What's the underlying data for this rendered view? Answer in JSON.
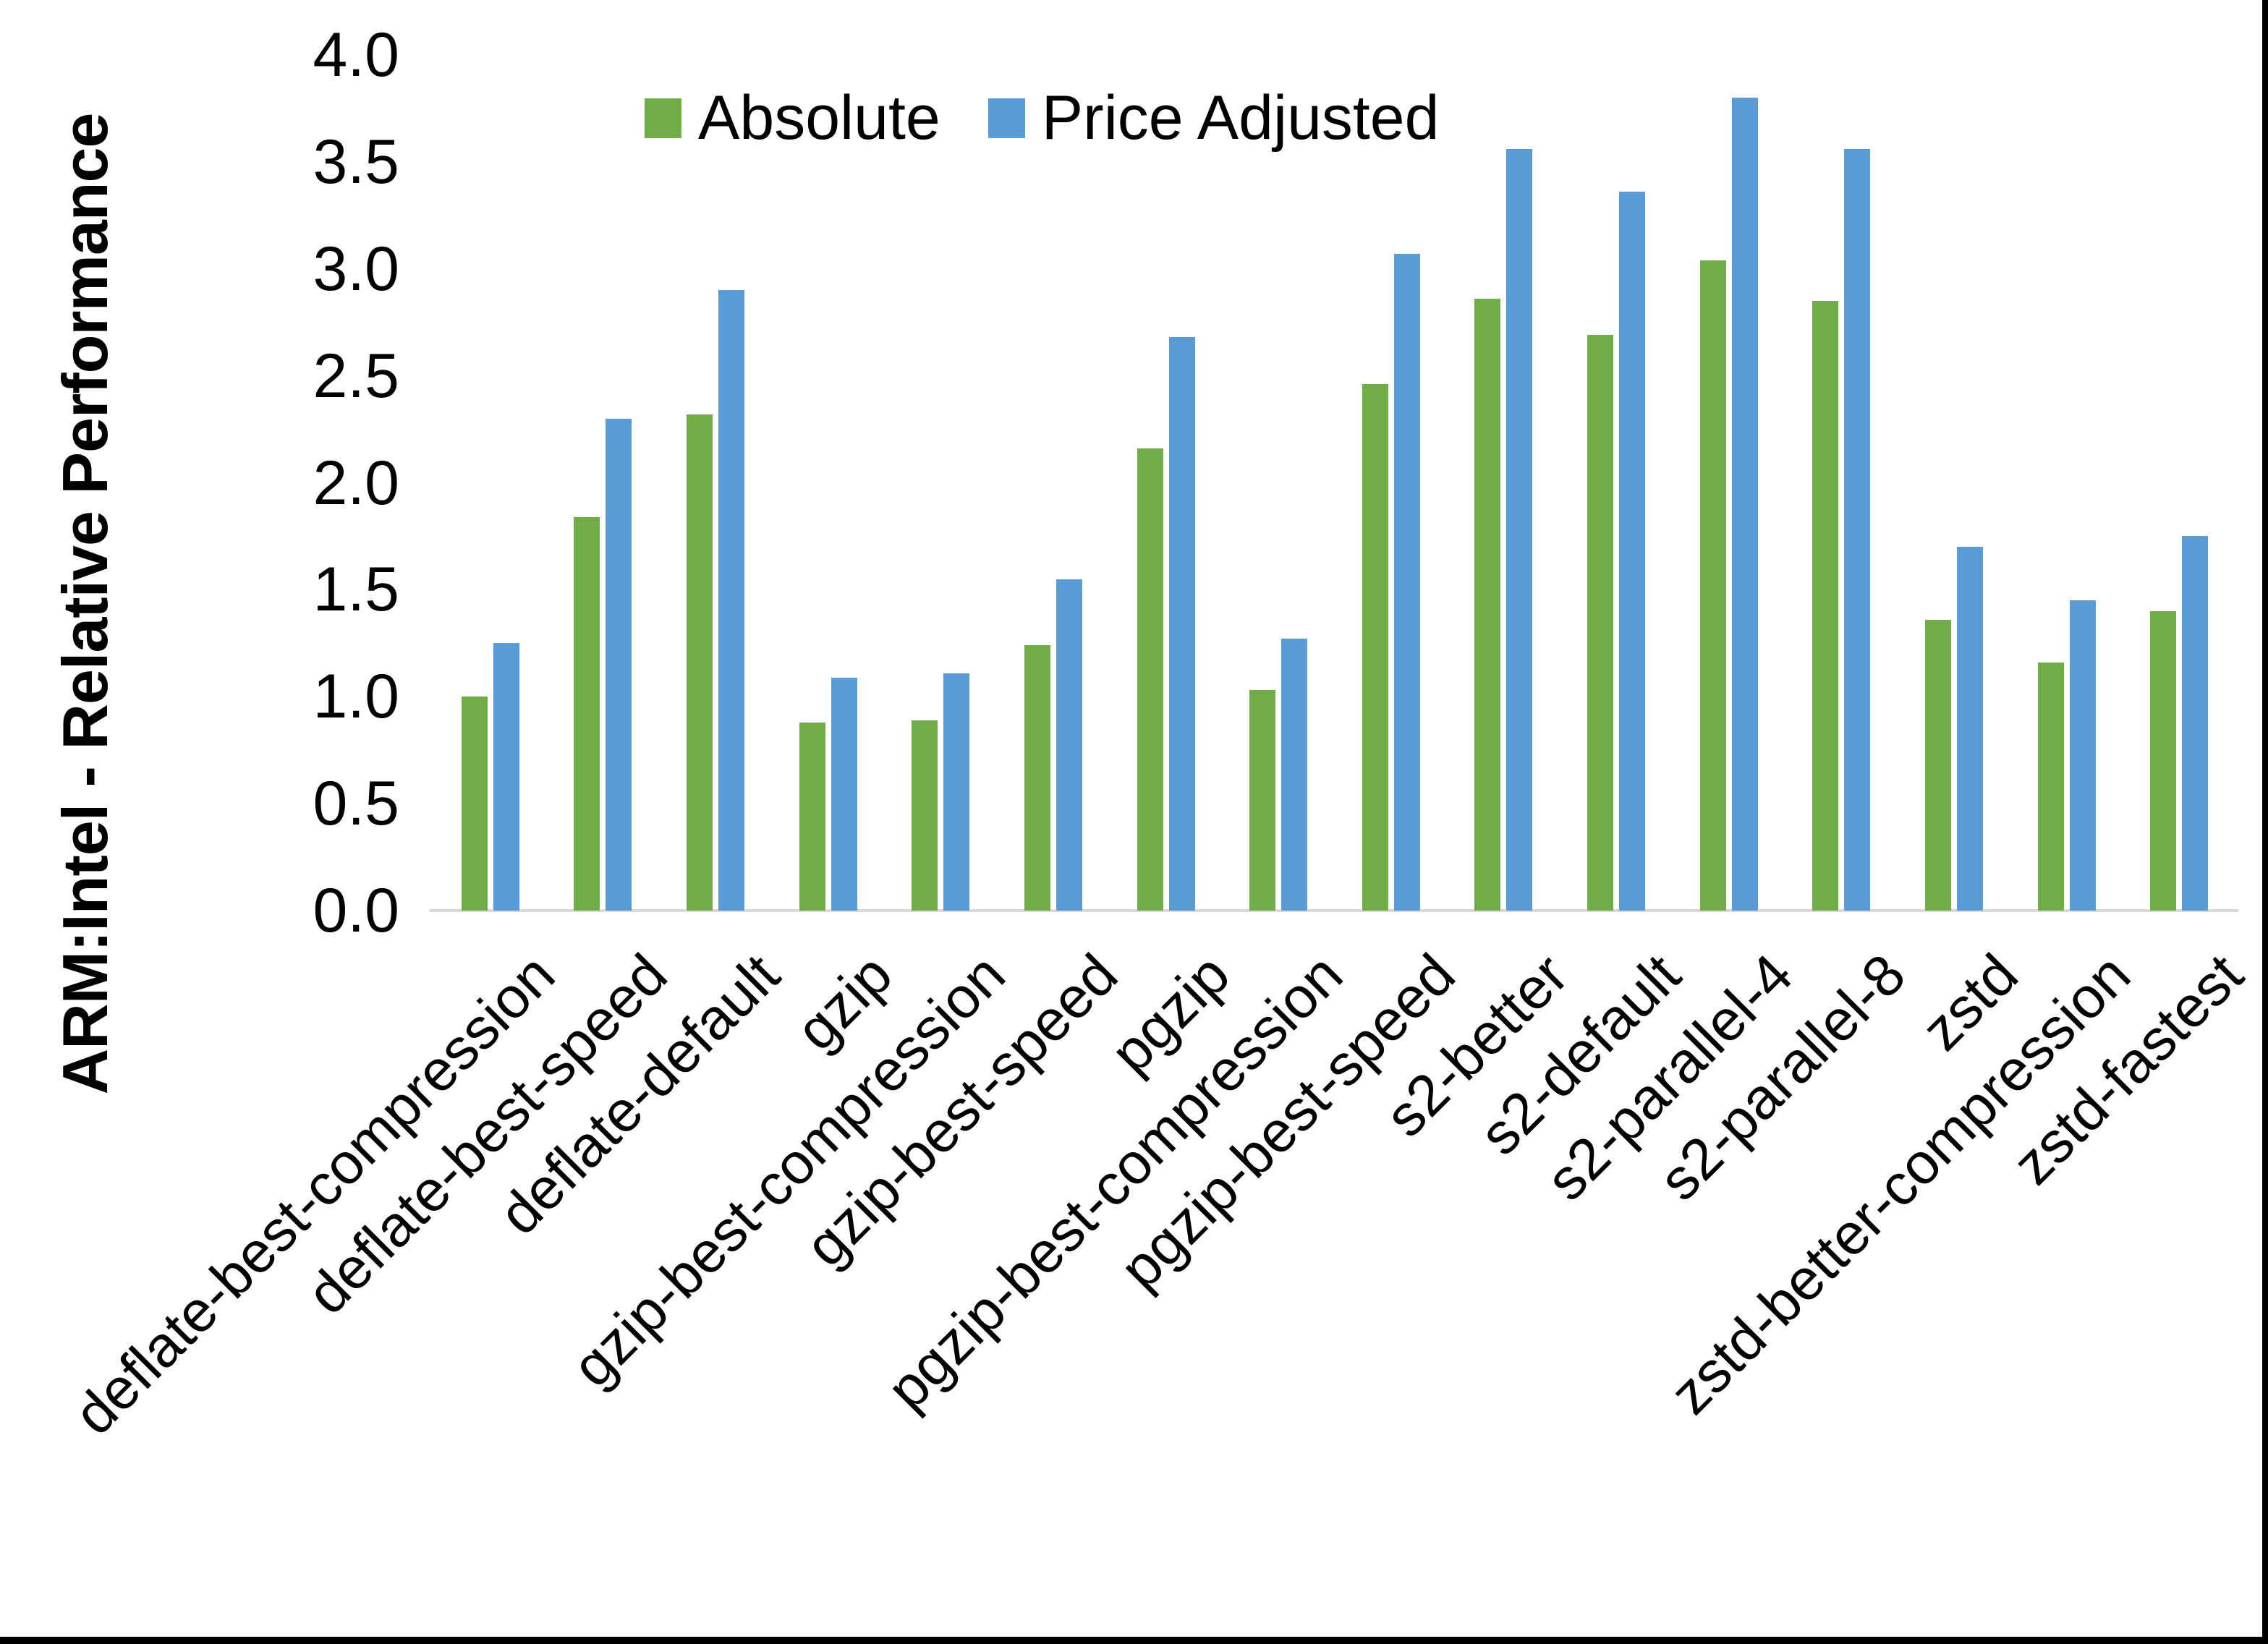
{
  "page": {
    "background": "#ffffff"
  },
  "borders": {
    "right_color": "#000000",
    "bottom_color": "#000000"
  },
  "legend": {
    "items": [
      {
        "label": "Absolute",
        "color": "#70AD47"
      },
      {
        "label": "Price Adjusted",
        "color": "#5B9BD5"
      }
    ]
  },
  "chart_data": {
    "type": "bar",
    "title": "",
    "xlabel": "",
    "ylabel": "ARM:Intel - Relative Performance",
    "ylim": [
      0.0,
      4.0
    ],
    "ytick_step": 0.5,
    "ytick_labels": [
      "0.0",
      "0.5",
      "1.0",
      "1.5",
      "2.0",
      "2.5",
      "3.0",
      "3.5",
      "4.0"
    ],
    "grid": false,
    "legend_position": "top-center-inside",
    "axis_line_color": "#d9d9d9",
    "text_color": "#000000",
    "x_tick_rotation_deg": 45,
    "categories": [
      "deflate-best-compression",
      "deflate-best-speed",
      "deflate-default",
      "gzip",
      "gzip-best-compression",
      "gzip-best-speed",
      "pgzip",
      "pgzip-best-compression",
      "pgzip-best-speed",
      "s2-better",
      "s2-default",
      "s2-parallel-4",
      "s2-parallel-8",
      "zstd",
      "zstd-better-compression",
      "zstd-fastest"
    ],
    "series": [
      {
        "name": "Absolute",
        "color": "#70AD47",
        "values": [
          1.0,
          1.84,
          2.32,
          0.88,
          0.89,
          1.24,
          2.16,
          1.03,
          2.46,
          2.86,
          2.69,
          3.04,
          2.85,
          1.36,
          1.16,
          1.4
        ]
      },
      {
        "name": "Price Adjusted",
        "color": "#5B9BD5",
        "values": [
          1.25,
          2.3,
          2.9,
          1.09,
          1.11,
          1.55,
          2.68,
          1.27,
          3.07,
          3.56,
          3.36,
          3.8,
          3.56,
          1.7,
          1.45,
          1.75
        ]
      }
    ]
  }
}
